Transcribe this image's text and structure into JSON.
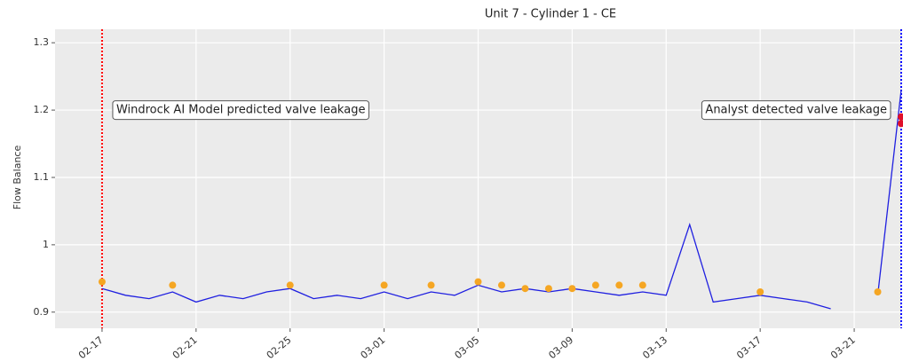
{
  "chart_data": {
    "type": "line",
    "title": "Unit 7 - Cylinder 1 - CE",
    "ylabel": "Flow Balance",
    "ylim": [
      0.876,
      1.32
    ],
    "yticks": [
      0.9,
      1,
      1.1,
      1.2,
      1.3
    ],
    "xlim": [
      "02-15",
      "03-23"
    ],
    "xticks": [
      "02-17",
      "02-21",
      "02-25",
      "03-01",
      "03-05",
      "03-09",
      "03-13",
      "03-17",
      "03-21"
    ],
    "grid": true,
    "background": "#ebebeb",
    "series": [
      {
        "style": "line",
        "color": "#1f1fe0",
        "x": [
          "02-17",
          "02-18",
          "02-19",
          "02-20",
          "02-21",
          "02-22",
          "02-23",
          "02-24",
          "02-25",
          "02-26",
          "02-27",
          "02-28",
          "03-01",
          "03-02",
          "03-03",
          "03-04",
          "03-05",
          "03-06",
          "03-07",
          "03-08",
          "03-09",
          "03-10",
          "03-11",
          "03-12",
          "03-13",
          "03-14",
          "03-15",
          "03-16",
          "03-17",
          "03-18",
          "03-19",
          "03-20",
          "03-21",
          "03-22",
          "03-23"
        ],
        "values": [
          0.935,
          0.925,
          0.92,
          0.93,
          0.915,
          0.925,
          0.92,
          0.93,
          0.935,
          0.92,
          0.925,
          0.92,
          0.93,
          0.92,
          0.93,
          0.925,
          0.94,
          0.93,
          0.935,
          0.93,
          0.935,
          0.93,
          0.925,
          0.93,
          0.925,
          1.03,
          0.915,
          0.92,
          0.925,
          0.92,
          0.915,
          0.905,
          null,
          0.925,
          1.23
        ]
      },
      {
        "style": "dots",
        "color": "#f5a623",
        "x": [
          "02-17",
          "02-20",
          "02-25",
          "03-01",
          "03-03",
          "03-05",
          "03-06",
          "03-07",
          "03-08",
          "03-09",
          "03-10",
          "03-11",
          "03-12",
          "03-17",
          "03-22"
        ],
        "values": [
          0.945,
          0.94,
          0.94,
          0.94,
          0.94,
          0.945,
          0.94,
          0.935,
          0.935,
          0.935,
          0.94,
          0.94,
          0.94,
          0.93,
          0.93
        ]
      },
      {
        "style": "dots",
        "color": "#e0102a",
        "x": [
          "03-23",
          "03-23"
        ],
        "values": [
          1.19,
          1.18
        ]
      }
    ],
    "vlines": [
      {
        "x": "02-17",
        "color": "red"
      },
      {
        "x": "03-23",
        "color": "blue"
      }
    ],
    "annotations": [
      {
        "text": "Windrock AI Model predicted valve leakage",
        "x": "02-17",
        "y": 1.2,
        "align": "left"
      },
      {
        "text": "Analyst detected valve leakage",
        "x": "03-23",
        "y": 1.2,
        "align": "right"
      }
    ]
  }
}
